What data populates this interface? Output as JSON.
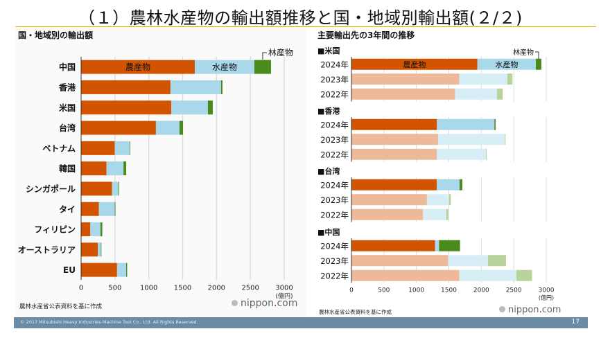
{
  "header": {
    "title": "（１）農林水産物の輸出額推移と国・地域別輸出額(２/２)"
  },
  "left": {
    "subtitle": "国・地域別の輸出額",
    "source": "農林水産省公表資料を基に作成",
    "brand_prefix": "nippon",
    "brand_dot": ".",
    "brand_suffix": "com"
  },
  "right": {
    "subtitle": "主要輸出先の3年間の推移",
    "source": "農林水産省公表資料を基に作成",
    "brand_prefix": "nippon",
    "brand_dot": ".",
    "brand_suffix": "com"
  },
  "footer": {
    "copyright": "© 2017 Mitsubishi Heavy Industries Machine Tool Co., Ltd.   All Rights Reserved.",
    "page_number": "17"
  },
  "colors": {
    "agri": "#d35400",
    "fish": "#a8d8ea",
    "forest": "#4a8a1a",
    "agri_light": "#eeb999",
    "fish_light": "#d8eef7",
    "forest_light": "#b9d39c",
    "grid": "#dddddd",
    "accent_rule": "#f0b400",
    "footer_bar": "#6b8aa3"
  },
  "chart_data": [
    {
      "type": "bar",
      "orientation": "horizontal",
      "stacked": true,
      "title": "国・地域別の輸出額",
      "xlabel": "(億円)",
      "xlim": [
        0,
        3000
      ],
      "xticks": [
        0,
        500,
        1000,
        1500,
        2000,
        2500,
        3000
      ],
      "grid": true,
      "categories": [
        "中国",
        "香港",
        "米国",
        "台湾",
        "ベトナム",
        "韓国",
        "シンガポール",
        "タイ",
        "フィリピン",
        "オーストラリア",
        "EU"
      ],
      "series": [
        {
          "name": "農産物",
          "values": [
            1679,
            1320,
            1331,
            1105,
            497,
            375,
            457,
            262,
            136,
            248,
            531
          ]
        },
        {
          "name": "水産物",
          "values": [
            880,
            747,
            542,
            348,
            220,
            251,
            98,
            235,
            150,
            44,
            135
          ]
        },
        {
          "name": "林産物",
          "values": [
            246,
            21,
            72,
            52,
            8,
            40,
            7,
            10,
            27,
            1,
            14
          ]
        }
      ],
      "annotations": [
        "農産物",
        "水産物",
        "林産物"
      ]
    },
    {
      "type": "bar",
      "orientation": "horizontal",
      "stacked": true,
      "title": "主要輸出先の3年間の推移",
      "xlabel": "(億円)",
      "xlim": [
        0,
        3000
      ],
      "xticks": [
        0,
        500,
        1000,
        1500,
        2000,
        2500,
        3000
      ],
      "grid": true,
      "series_names": [
        "農産物",
        "水産物",
        "林産物"
      ],
      "groups": [
        {
          "name": "■米国",
          "years": [
            "2024年",
            "2023年",
            "2022年"
          ],
          "values": [
            [
              1940,
              900,
              85
            ],
            [
              1660,
              740,
              80
            ],
            [
              1595,
              645,
              90
            ]
          ]
        },
        {
          "name": "■香港",
          "years": [
            "2024年",
            "2023年",
            "2022年"
          ],
          "values": [
            [
              1316,
              886,
              18
            ],
            [
              1334,
              1028,
              11
            ],
            [
              1316,
              754,
              11
            ]
          ]
        },
        {
          "name": "■台湾",
          "years": [
            "2024年",
            "2023年",
            "2022年"
          ],
          "values": [
            [
              1313,
              352,
              43
            ],
            [
              1163,
              339,
              28
            ],
            [
              1103,
              356,
              32
            ]
          ]
        },
        {
          "name": "■中国",
          "years": [
            "2024年",
            "2023年",
            "2022年"
          ],
          "values": [
            [
              1288,
              61,
              323
            ],
            [
              1491,
              611,
              278
            ],
            [
              1662,
              878,
              242
            ]
          ]
        }
      ],
      "annotations": [
        "農産物",
        "水産物",
        "林産物"
      ]
    }
  ]
}
